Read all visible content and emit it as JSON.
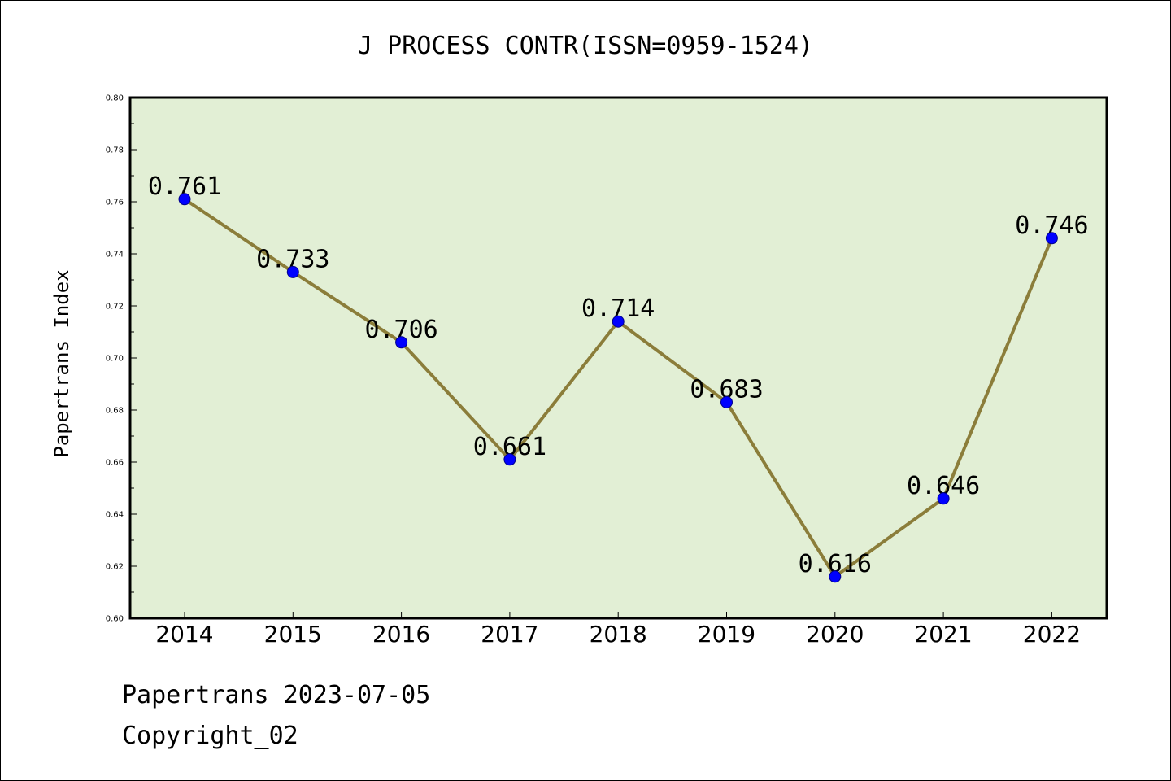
{
  "chart_data": {
    "type": "line",
    "title": "J PROCESS CONTR(ISSN=0959-1524)",
    "xlabel": "",
    "ylabel": "Papertrans Index",
    "categories": [
      "2014",
      "2015",
      "2016",
      "2017",
      "2018",
      "2019",
      "2020",
      "2021",
      "2022"
    ],
    "values": [
      0.761,
      0.733,
      0.706,
      0.661,
      0.714,
      0.683,
      0.616,
      0.646,
      0.746
    ],
    "data_labels": [
      "0.761",
      "0.733",
      "0.706",
      "0.661",
      "0.714",
      "0.683",
      "0.616",
      "0.646",
      "0.746"
    ],
    "ylim": [
      0.6,
      0.8
    ],
    "yticks": [
      "0.60",
      "0.62",
      "0.64",
      "0.66",
      "0.68",
      "0.70",
      "0.72",
      "0.74",
      "0.76",
      "0.78",
      "0.80"
    ],
    "grid": false,
    "colors": {
      "plot_background": "#e2efd5",
      "line": "#8b7d3a",
      "marker": "#0000ff"
    }
  },
  "footer": {
    "line1": "Papertrans 2023-07-05",
    "line2": "Copyright_02"
  }
}
